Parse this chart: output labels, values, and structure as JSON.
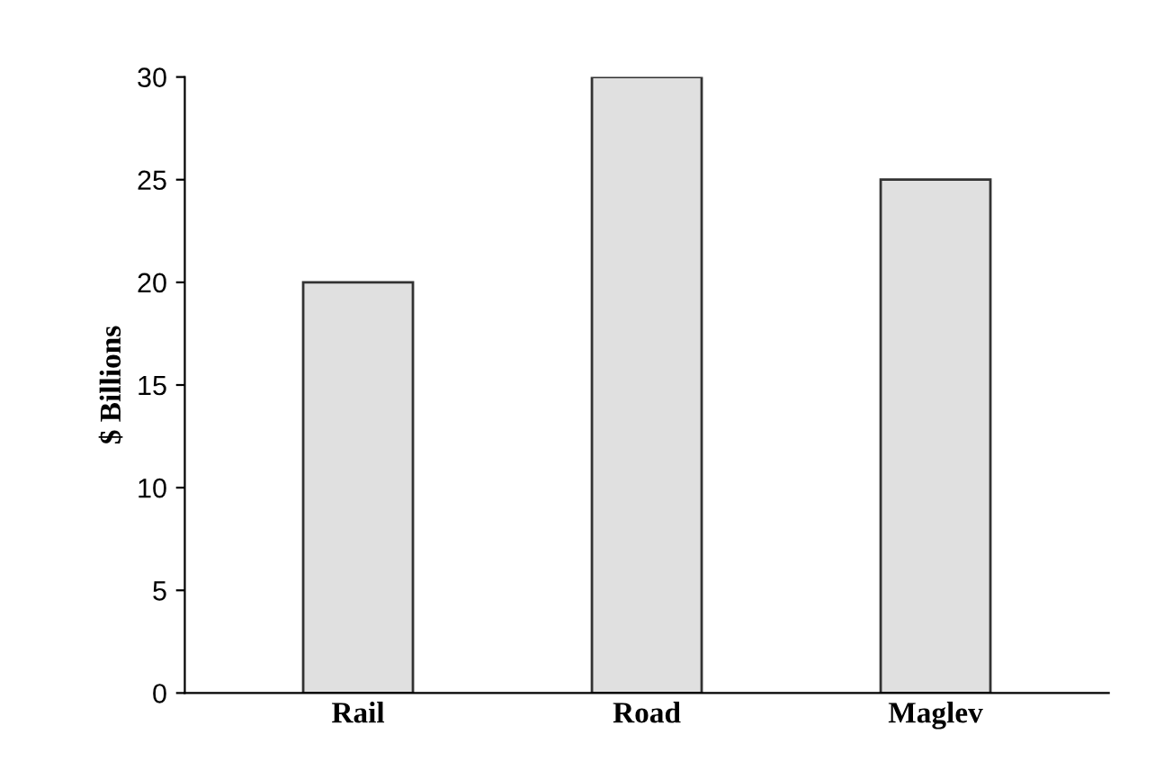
{
  "chart_data": {
    "type": "bar",
    "ylabel": "$ Billions",
    "categories": [
      "Rail",
      "Road",
      "Maglev"
    ],
    "values": [
      20,
      30,
      25
    ],
    "color": "#e0e0e0",
    "ylim": [
      0,
      30
    ],
    "yticks": [
      0,
      5,
      10,
      15,
      20,
      25,
      30
    ],
    "grid": false
  }
}
